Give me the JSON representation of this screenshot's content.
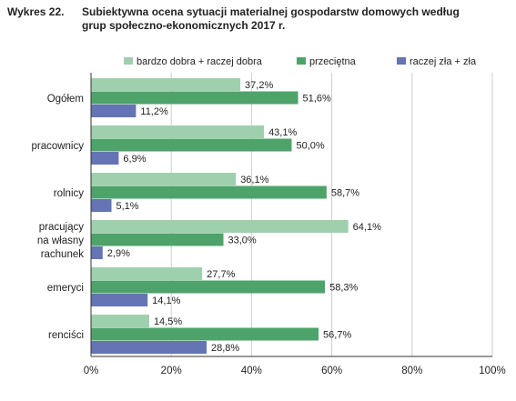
{
  "title_number": "Wykres 22.",
  "title_line1": "Subiektywna ocena sytuacji materialnej gospodarstw domowych według",
  "title_line2": "grup społeczno-ekonomicznych 2017 r.",
  "colors": {
    "light": "#9fd0ad",
    "mid": "#4ea36b",
    "blue": "#6474b4",
    "grid": "#cccccc"
  },
  "chart_data": {
    "type": "bar",
    "orientation": "horizontal",
    "categories": [
      [
        "Ogółem"
      ],
      [
        "pracownicy"
      ],
      [
        "rolnicy"
      ],
      [
        "pracujący",
        "na własny",
        "rachunek"
      ],
      [
        "emeryci"
      ],
      [
        "renciści"
      ]
    ],
    "series": [
      {
        "name": "bardzo dobra + raczej dobra",
        "values": [
          37.2,
          43.1,
          36.1,
          64.1,
          27.7,
          14.5
        ],
        "labels": [
          "37,2%",
          "43,1%",
          "36,1%",
          "64,1%",
          "27,7%",
          "14,5%"
        ]
      },
      {
        "name": "przeciętna",
        "values": [
          51.6,
          50.0,
          58.7,
          33.0,
          58.3,
          56.7
        ],
        "labels": [
          "51,6%",
          "50,0%",
          "58,7%",
          "33,0%",
          "58,3%",
          "56,7%"
        ]
      },
      {
        "name": "raczej zła + zła",
        "values": [
          11.2,
          6.9,
          5.1,
          2.9,
          14.1,
          28.8
        ],
        "labels": [
          "11,2%",
          "6,9%",
          "5,1%",
          "2,9%",
          "14,1%",
          "28,8%"
        ]
      }
    ],
    "xlim": [
      0,
      100
    ],
    "xticks": [
      "0%",
      "20%",
      "40%",
      "60%",
      "80%",
      "100%"
    ],
    "xtick_values": [
      0,
      20,
      40,
      60,
      80,
      100
    ],
    "grid": true,
    "legend_position": "top"
  }
}
